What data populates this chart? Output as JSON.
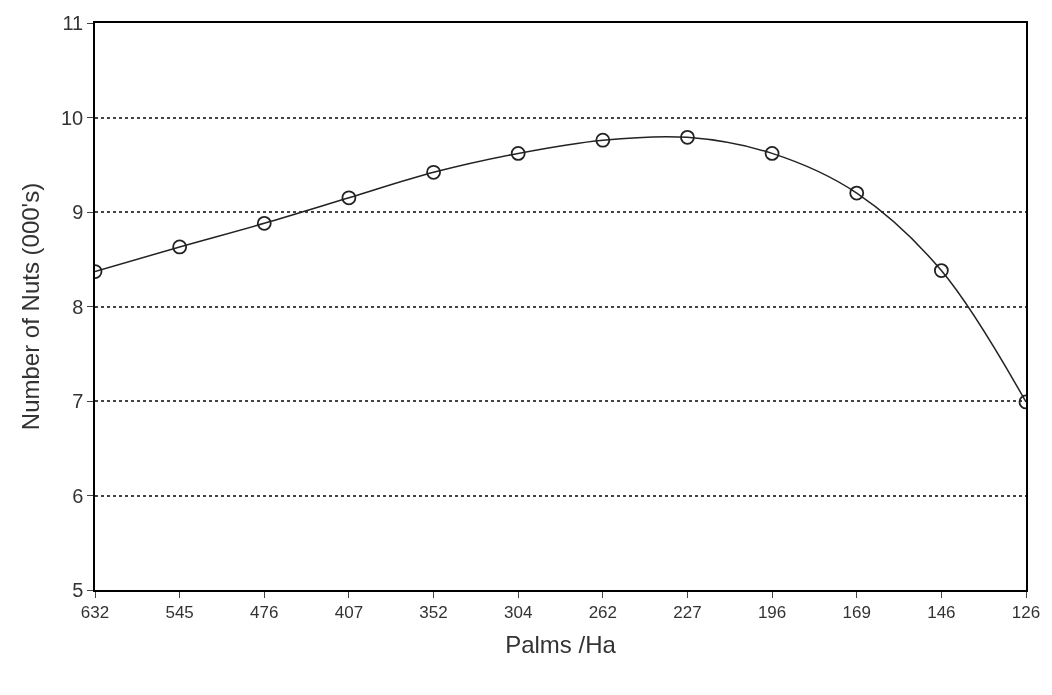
{
  "chart_data": {
    "type": "line",
    "xlabel": "Palms /Ha",
    "ylabel": "Number of Nuts (000's)",
    "categories": [
      "632",
      "545",
      "476",
      "407",
      "352",
      "304",
      "262",
      "227",
      "196",
      "169",
      "146",
      "126"
    ],
    "series": [
      {
        "color": "#222222",
        "values": [
          8.37,
          8.63,
          8.88,
          9.15,
          9.42,
          9.62,
          9.76,
          9.79,
          9.62,
          9.2,
          8.38,
          6.99
        ]
      }
    ],
    "ylim": [
      5,
      11
    ],
    "yticks": [
      5,
      6,
      7,
      8,
      9,
      10,
      11
    ],
    "grid": "y",
    "marker": "circle",
    "line_style": "solid",
    "legend": false
  }
}
